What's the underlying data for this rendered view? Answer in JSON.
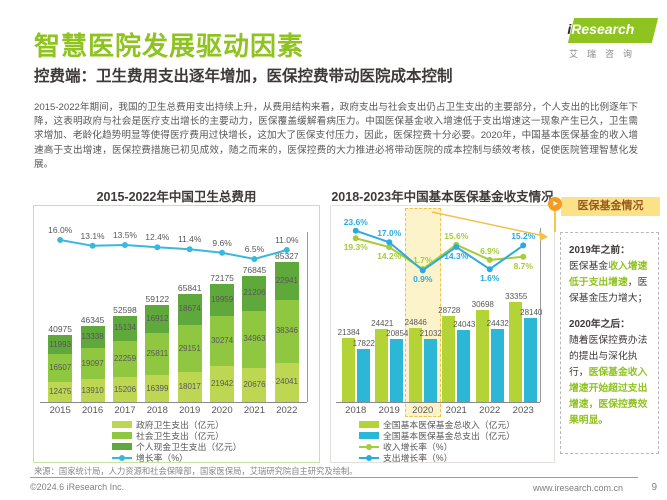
{
  "header": {
    "title": "智慧医院发展驱动因素",
    "subtitle": "控费端：卫生费用支出逐年增加，医保控费带动医院成本控制",
    "logo": {
      "brand_i": "i",
      "brand_rest": "Research",
      "brand_cn": "艾瑞咨询"
    }
  },
  "body_text": "2015-2022年期间，我国的卫生总费用支出持续上升，从费用结构来看，政府支出与社会支出仍占卫生支出的主要部分，个人支出的比例逐年下降，这表明政府与社会是医疗支出增长的主要动力，医保覆盖缓解看病压力。中国医保基金收入增速低于支出增速这一现象产生已久，卫生需求增加、老龄化趋势明显等使得医疗费用过快增长，这加大了医保支付压力，因此，医保控费十分必要。2020年，中国基本医保基金的收入增速高于支出增速，医保控费措施已初见成效，随之而来的，医保控费的大力推进必将带动医院的成本控制与绩效考核，促使医院管理智慧化发展。",
  "chart_data": [
    {
      "type": "bar",
      "subtype": "stacked-bars-with-growth-line",
      "title": "2015-2022年中国卫生总费用",
      "categories": [
        "2015",
        "2016",
        "2017",
        "2018",
        "2019",
        "2020",
        "2021",
        "2022"
      ],
      "series": [
        {
          "name": "政府卫生支出（亿元）",
          "role": "bar",
          "color": "#bdd753",
          "values": [
            12475,
            13910,
            15206,
            16399,
            18017,
            21942,
            20676,
            24041
          ]
        },
        {
          "name": "社会卫生支出（亿元）",
          "role": "bar",
          "color": "#8fc740",
          "values": [
            16507,
            19097,
            22259,
            25811,
            29151,
            30274,
            34963,
            38346
          ]
        },
        {
          "name": "个人现金卫生支出（亿元）",
          "role": "bar",
          "color": "#5fa83c",
          "values": [
            11993,
            13338,
            15134,
            16912,
            18674,
            19959,
            21206,
            22941
          ]
        },
        {
          "name": "增长率（%）",
          "role": "line",
          "color": "#3ab7dc",
          "values": [
            16.0,
            13.1,
            13.5,
            12.4,
            11.4,
            9.6,
            6.5,
            11.0
          ]
        }
      ],
      "totals": [
        40975,
        46345,
        52598,
        59122,
        65841,
        72175,
        76845,
        85327
      ],
      "bar_ylim": [
        0,
        90000
      ],
      "line_ylim": [
        0,
        20
      ],
      "grid": false,
      "legend_position": "bottom"
    },
    {
      "type": "bar",
      "subtype": "grouped-bars-with-two-growth-lines",
      "title": "2018-2023年中国基本医保基金收支情况",
      "categories": [
        "2018",
        "2019",
        "2020",
        "2021",
        "2022",
        "2023"
      ],
      "highlight_category": "2020",
      "series": [
        {
          "name": "全国基本医保基金总收入（亿元）",
          "role": "bar",
          "color": "#b3d336",
          "values": [
            21384,
            24421,
            24846,
            28728,
            30698,
            33355
          ]
        },
        {
          "name": "全国基本医保基金总支出（亿元）",
          "role": "bar",
          "color": "#2cb7d6",
          "values": [
            17822,
            20854,
            21032,
            24043,
            24432,
            28140
          ]
        },
        {
          "name": "收入增长率（%）",
          "role": "line",
          "color": "#a8cb3a",
          "values": [
            19.3,
            14.2,
            1.7,
            15.6,
            6.9,
            8.7
          ]
        },
        {
          "name": "支出增长率（%）",
          "role": "line",
          "color": "#29abe2",
          "values": [
            23.6,
            17.0,
            0.9,
            14.3,
            1.6,
            15.2
          ]
        }
      ],
      "bar_ylim": [
        0,
        35000
      ],
      "line_ylim": [
        0,
        25
      ],
      "grid": false,
      "legend_position": "bottom"
    }
  ],
  "sidebar": {
    "badge": "医保基金情况",
    "sections": [
      {
        "heading": "2019年之前：",
        "parts": [
          {
            "text": "医保基金",
            "accent": false
          },
          {
            "text": "收入增速低于支出增速",
            "accent": true
          },
          {
            "text": "，医保基金压力增大；",
            "accent": false
          }
        ]
      },
      {
        "heading": "2020年之后：",
        "parts": [
          {
            "text": "随着医保控费办法的提出与深化执行，",
            "accent": false
          },
          {
            "text": "医保基金收入增速开始超过支出增速，医保控费效果明显。",
            "accent": true
          }
        ]
      }
    ]
  },
  "footer": {
    "source": "来源：国家统计局，人力资源和社会保障部，国家医保局，艾瑞研究院自主研究及绘制。",
    "copyright": "©2024.6 iResearch Inc.",
    "website": "www.iresearch.com.cn",
    "page_number": "9"
  },
  "colors": {
    "accent_green": "#8fc31f",
    "text_dark": "#3e3a39",
    "text_gray": "#595757",
    "highlight_fill": "#fae798",
    "highlight_border": "#f0c24b",
    "pin_orange": "#f59a23",
    "badge_bg": "#fbe289",
    "badge_text": "#995a1d"
  }
}
